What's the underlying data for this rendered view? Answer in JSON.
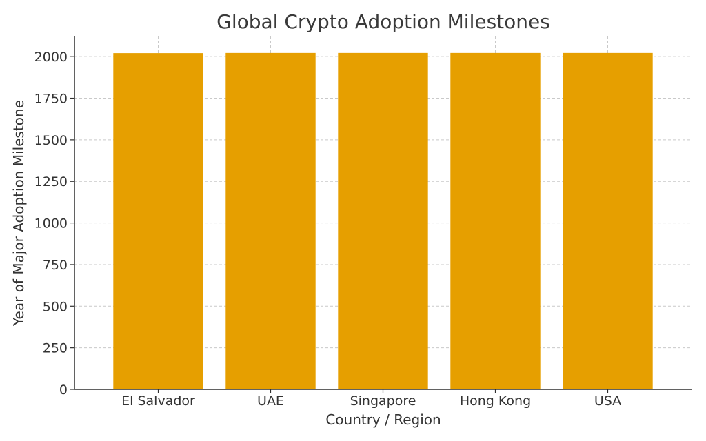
{
  "chart_data": {
    "type": "bar",
    "title": "Global Crypto Adoption Milestones",
    "xlabel": "Country / Region",
    "ylabel": "Year of Major Adoption Milestone",
    "categories": [
      "El Salvador",
      "UAE",
      "Singapore",
      "Hong Kong",
      "USA"
    ],
    "values": [
      2021,
      2022,
      2022,
      2022,
      2022
    ],
    "ylim": [
      0,
      2125
    ],
    "yticks": [
      0,
      250,
      500,
      750,
      1000,
      1250,
      1500,
      1750,
      2000
    ],
    "grid": true,
    "legend": "none",
    "colors": {
      "bar": "#E69F00"
    }
  }
}
